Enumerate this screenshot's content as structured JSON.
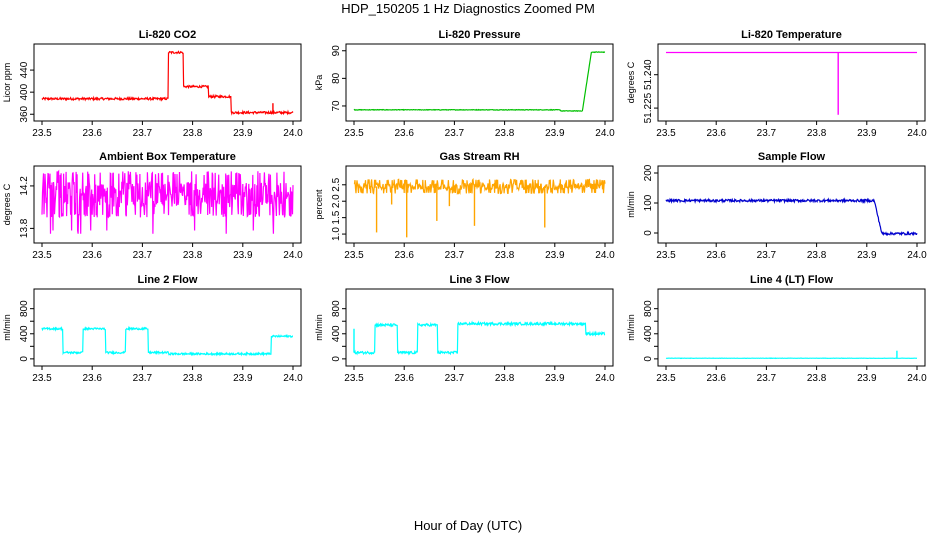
{
  "page": {
    "title": "HDP_150205  1 Hz Diagnostics Zoomed PM",
    "x_axis_title": "Hour of Day (UTC)"
  },
  "chart_data": [
    {
      "type": "line",
      "title": "Li-820 CO2",
      "ylabel": "Licor ppm",
      "color": "#ff0000",
      "xlim": [
        23.5,
        24.0
      ],
      "xticks": [
        "23.5",
        "23.6",
        "23.7",
        "23.8",
        "23.9",
        "24.0"
      ],
      "ylim": [
        355,
        480
      ],
      "yticks": [
        360,
        400,
        440
      ],
      "yticklabels": [
        "360",
        "400",
        "440"
      ],
      "series": [
        {
          "style": "steps",
          "segments": [
            [
              23.5,
              23.75,
              388
            ],
            [
              23.752,
              23.78,
              472
            ],
            [
              23.782,
              23.83,
              410
            ],
            [
              23.832,
              23.875,
              392
            ],
            [
              23.877,
              24.0,
              363
            ]
          ],
          "spikes": [
            [
              23.96,
              380
            ]
          ],
          "noise": 2
        }
      ]
    },
    {
      "type": "line",
      "title": "Li-820 Pressure",
      "ylabel": "kPa",
      "color": "#00c000",
      "xlim": [
        23.5,
        24.0
      ],
      "xticks": [
        "23.5",
        "23.6",
        "23.7",
        "23.8",
        "23.9",
        "24.0"
      ],
      "ylim": [
        66.0,
        91.0
      ],
      "yticks": [
        70,
        80,
        90
      ],
      "yticklabels": [
        "70",
        "80",
        "90"
      ],
      "series": [
        {
          "style": "steps",
          "segments": [
            [
              23.5,
              23.91,
              68.6
            ],
            [
              23.912,
              23.955,
              68.2
            ],
            [
              23.973,
              24.0,
              89.5
            ]
          ],
          "ramps": [
            [
              23.955,
              68.2,
              23.973,
              89.5
            ]
          ],
          "noise": 0.1
        }
      ]
    },
    {
      "type": "line",
      "title": "Li-820 Temperature",
      "ylabel": "degrees C",
      "color": "#ff00ff",
      "xlim": [
        23.5,
        24.0
      ],
      "xticks": [
        "23.5",
        "23.6",
        "23.7",
        "23.8",
        "23.9",
        "24.0"
      ],
      "ylim": [
        51.221,
        51.252
      ],
      "yticks": [
        51.225,
        51.24
      ],
      "yticklabels": [
        "51.225",
        "51.240"
      ],
      "series": [
        {
          "style": "steps",
          "segments": [
            [
              23.5,
              24.0,
              51.25
            ]
          ],
          "spikes": [
            [
              23.843,
              51.222
            ]
          ],
          "noise": 0
        }
      ]
    },
    {
      "type": "line",
      "title": "Ambient Box Temperature",
      "ylabel": "degrees C",
      "color": "#ff00ff",
      "xlim": [
        23.5,
        24.0
      ],
      "xticks": [
        "23.5",
        "23.6",
        "23.7",
        "23.8",
        "23.9",
        "24.0"
      ],
      "ylim": [
        13.7,
        14.35
      ],
      "yticks": [
        13.8,
        14.2
      ],
      "yticklabels": [
        "13.8",
        "14.2"
      ],
      "series": [
        {
          "style": "noise",
          "center": 14.12,
          "band": [
            13.92,
            14.32
          ],
          "dips": [
            13.75,
            13.78
          ],
          "noise": 0.12
        }
      ]
    },
    {
      "type": "line",
      "title": "Gas Stream RH",
      "ylabel": "percent",
      "color": "#ffa500",
      "xlim": [
        23.5,
        24.0
      ],
      "xticks": [
        "23.5",
        "23.6",
        "23.7",
        "23.8",
        "23.9",
        "24.0"
      ],
      "ylim": [
        0.85,
        2.95
      ],
      "yticks": [
        1.0,
        1.5,
        2.0,
        2.5
      ],
      "yticklabels": [
        "1.0",
        "1.5",
        "2.0",
        "2.5"
      ],
      "series": [
        {
          "style": "noise",
          "center": 2.45,
          "band": [
            2.25,
            2.65
          ],
          "spikes": [
            [
              23.545,
              1.05
            ],
            [
              23.605,
              0.9
            ],
            [
              23.665,
              1.4
            ],
            [
              23.74,
              1.25
            ],
            [
              23.88,
              1.2
            ],
            [
              23.575,
              1.9
            ],
            [
              23.69,
              1.85
            ]
          ],
          "noise": 0.1
        }
      ]
    },
    {
      "type": "line",
      "title": "Sample Flow",
      "ylabel": "ml/min",
      "color": "#0000cd",
      "xlim": [
        23.5,
        24.0
      ],
      "xticks": [
        "23.5",
        "23.6",
        "23.7",
        "23.8",
        "23.9",
        "24.0"
      ],
      "ylim": [
        -20,
        210
      ],
      "yticks": [
        0,
        100,
        200
      ],
      "yticklabels": [
        "0",
        "100",
        "200"
      ],
      "series": [
        {
          "style": "steps",
          "segments": [
            [
              23.5,
              23.915,
              108
            ],
            [
              23.93,
              24.0,
              -2
            ]
          ],
          "ramps": [
            [
              23.915,
              108,
              23.93,
              -2
            ]
          ],
          "noise": 4
        }
      ]
    },
    {
      "type": "line",
      "title": "Line 2 Flow",
      "ylabel": "ml/min",
      "color": "#00ffff",
      "xlim": [
        23.5,
        24.0
      ],
      "xticks": [
        "23.5",
        "23.6",
        "23.7",
        "23.8",
        "23.9",
        "24.0"
      ],
      "ylim": [
        -50,
        1050
      ],
      "yticks": [
        0,
        200,
        400,
        600,
        800
      ],
      "yticklabels": [
        "0",
        "400",
        "800"
      ],
      "series": [
        {
          "style": "steps",
          "segments": [
            [
              23.5,
              23.54,
              480
            ],
            [
              23.542,
              23.58,
              100
            ],
            [
              23.582,
              23.625,
              480
            ],
            [
              23.627,
              23.665,
              100
            ],
            [
              23.667,
              23.71,
              480
            ],
            [
              23.712,
              23.75,
              100
            ],
            [
              23.752,
              23.955,
              80
            ],
            [
              23.957,
              24.0,
              360
            ]
          ],
          "noise": 15
        }
      ]
    },
    {
      "type": "line",
      "title": "Line 3 Flow",
      "ylabel": "ml/min",
      "color": "#00ffff",
      "xlim": [
        23.5,
        24.0
      ],
      "xticks": [
        "23.5",
        "23.6",
        "23.7",
        "23.8",
        "23.9",
        "24.0"
      ],
      "ylim": [
        -50,
        1050
      ],
      "yticks": [
        0,
        200,
        400,
        600,
        800
      ],
      "yticklabels": [
        "0",
        "400",
        "800"
      ],
      "series": [
        {
          "style": "steps",
          "segments": [
            [
              23.5,
              23.54,
              100
            ],
            [
              23.542,
              23.585,
              540
            ],
            [
              23.587,
              23.625,
              100
            ],
            [
              23.627,
              23.665,
              540
            ],
            [
              23.667,
              23.705,
              100
            ],
            [
              23.707,
              23.96,
              560
            ],
            [
              23.962,
              24.0,
              400
            ]
          ],
          "spikes": [
            [
              23.5,
              480
            ]
          ],
          "noise": 20
        }
      ]
    },
    {
      "type": "line",
      "title": "Line 4 (LT) Flow",
      "ylabel": "ml/min",
      "color": "#00ffff",
      "xlim": [
        23.5,
        24.0
      ],
      "xticks": [
        "23.5",
        "23.6",
        "23.7",
        "23.8",
        "23.9",
        "24.0"
      ],
      "ylim": [
        -50,
        1050
      ],
      "yticks": [
        0,
        200,
        400,
        600,
        800
      ],
      "yticklabels": [
        "0",
        "400",
        "800"
      ],
      "series": [
        {
          "style": "steps",
          "segments": [
            [
              23.5,
              24.0,
              10
            ]
          ],
          "spikes": [
            [
              23.96,
              130
            ]
          ],
          "noise": 2
        }
      ]
    }
  ]
}
